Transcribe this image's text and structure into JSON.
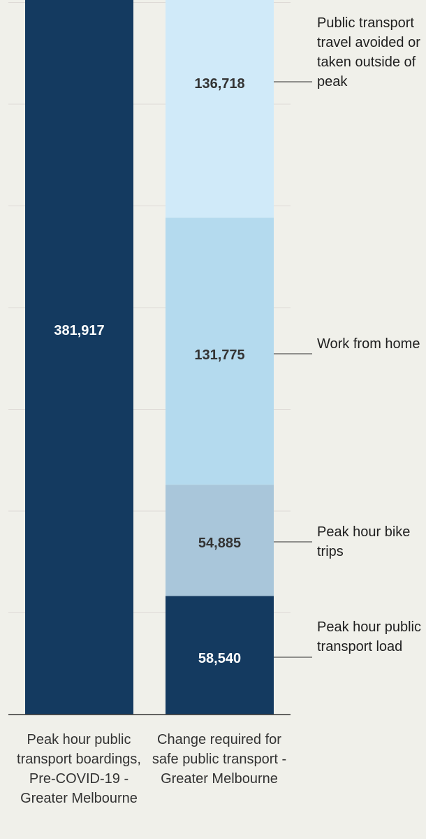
{
  "chart_data": {
    "type": "bar",
    "stacked": true,
    "categories": [
      "Peak hour public transport boardings, Pre-COVID-19 - Greater Melbourne",
      "Change required for safe public transport - Greater Melbourne"
    ],
    "series": [
      {
        "name": "Peak hour public transport load",
        "values": [
          null,
          58540
        ],
        "data_label": "58,540",
        "color": "#143a60"
      },
      {
        "name": "Peak hour bike trips",
        "values": [
          null,
          54885
        ],
        "data_label": "54,885",
        "color": "#a9c6da"
      },
      {
        "name": "Work from home",
        "values": [
          null,
          131775
        ],
        "data_label": "131,775",
        "color": "#b4daee"
      },
      {
        "name": "Public transport travel avoided or taken outside of peak",
        "values": [
          null,
          136718
        ],
        "data_label": "136,718",
        "color": "#d0eaf9"
      }
    ],
    "totals": [
      {
        "category": "Peak hour public transport boardings, Pre-COVID-19 - Greater Melbourne",
        "value": 381917,
        "data_label": "381,917",
        "color": "#143a60"
      }
    ],
    "legend_placement": "right (labels beside segments)",
    "grid": true,
    "colors": {
      "background": "#f0f0ea",
      "dark_bar": "#143a60",
      "gridline": "#dedad6",
      "axis": "#333333"
    }
  }
}
